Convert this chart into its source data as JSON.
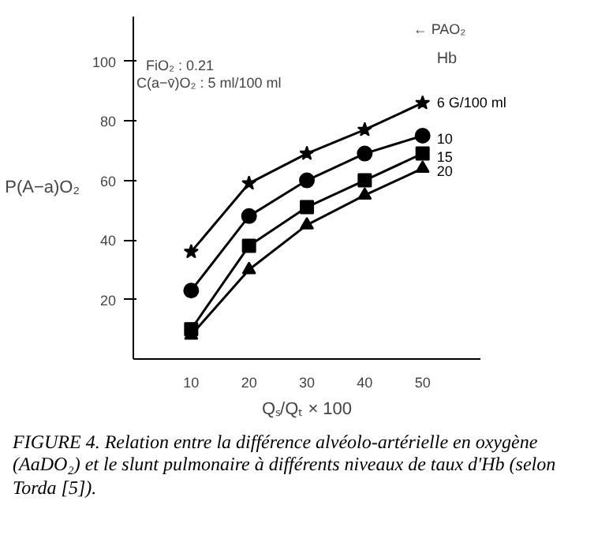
{
  "chart_data": {
    "type": "line",
    "xlabel": "Qₛ/Qₜ × 100",
    "ylabel": "P(A−a)O₂",
    "legend_title": "Hb",
    "x": [
      10,
      20,
      30,
      40,
      50
    ],
    "xlim": [
      0,
      60
    ],
    "ylim": [
      0,
      115
    ],
    "xticks": [
      10,
      20,
      30,
      40,
      50
    ],
    "yticks": [
      20,
      40,
      60,
      80,
      100
    ],
    "series": [
      {
        "name": "6 G/100 ml",
        "color": "#000000",
        "marker": "star",
        "values": [
          36,
          59,
          69,
          77,
          86
        ]
      },
      {
        "name": "10",
        "color": "#000000",
        "marker": "circle",
        "values": [
          23,
          48,
          60,
          69,
          75
        ]
      },
      {
        "name": "15",
        "color": "#000000",
        "marker": "square",
        "values": [
          10,
          38,
          51,
          60,
          69
        ]
      },
      {
        "name": "20",
        "color": "#000000",
        "marker": "triangle",
        "values": [
          8,
          30,
          45,
          55,
          64
        ]
      }
    ],
    "annotations": [
      "← PAO₂",
      "FiO₂ : 0.21",
      "C(a−v̄)O₂ : 5 ml/100 ml",
      "FIGURE 4. Relation entre la différence alvéolo-artérielle en oxygène (AaDO₂) et le slunt pulmonaire à différents niveaux de taux d'Hb (selon Torda [5])."
    ],
    "grid": false,
    "legend": "right",
    "line_style": "solid"
  }
}
